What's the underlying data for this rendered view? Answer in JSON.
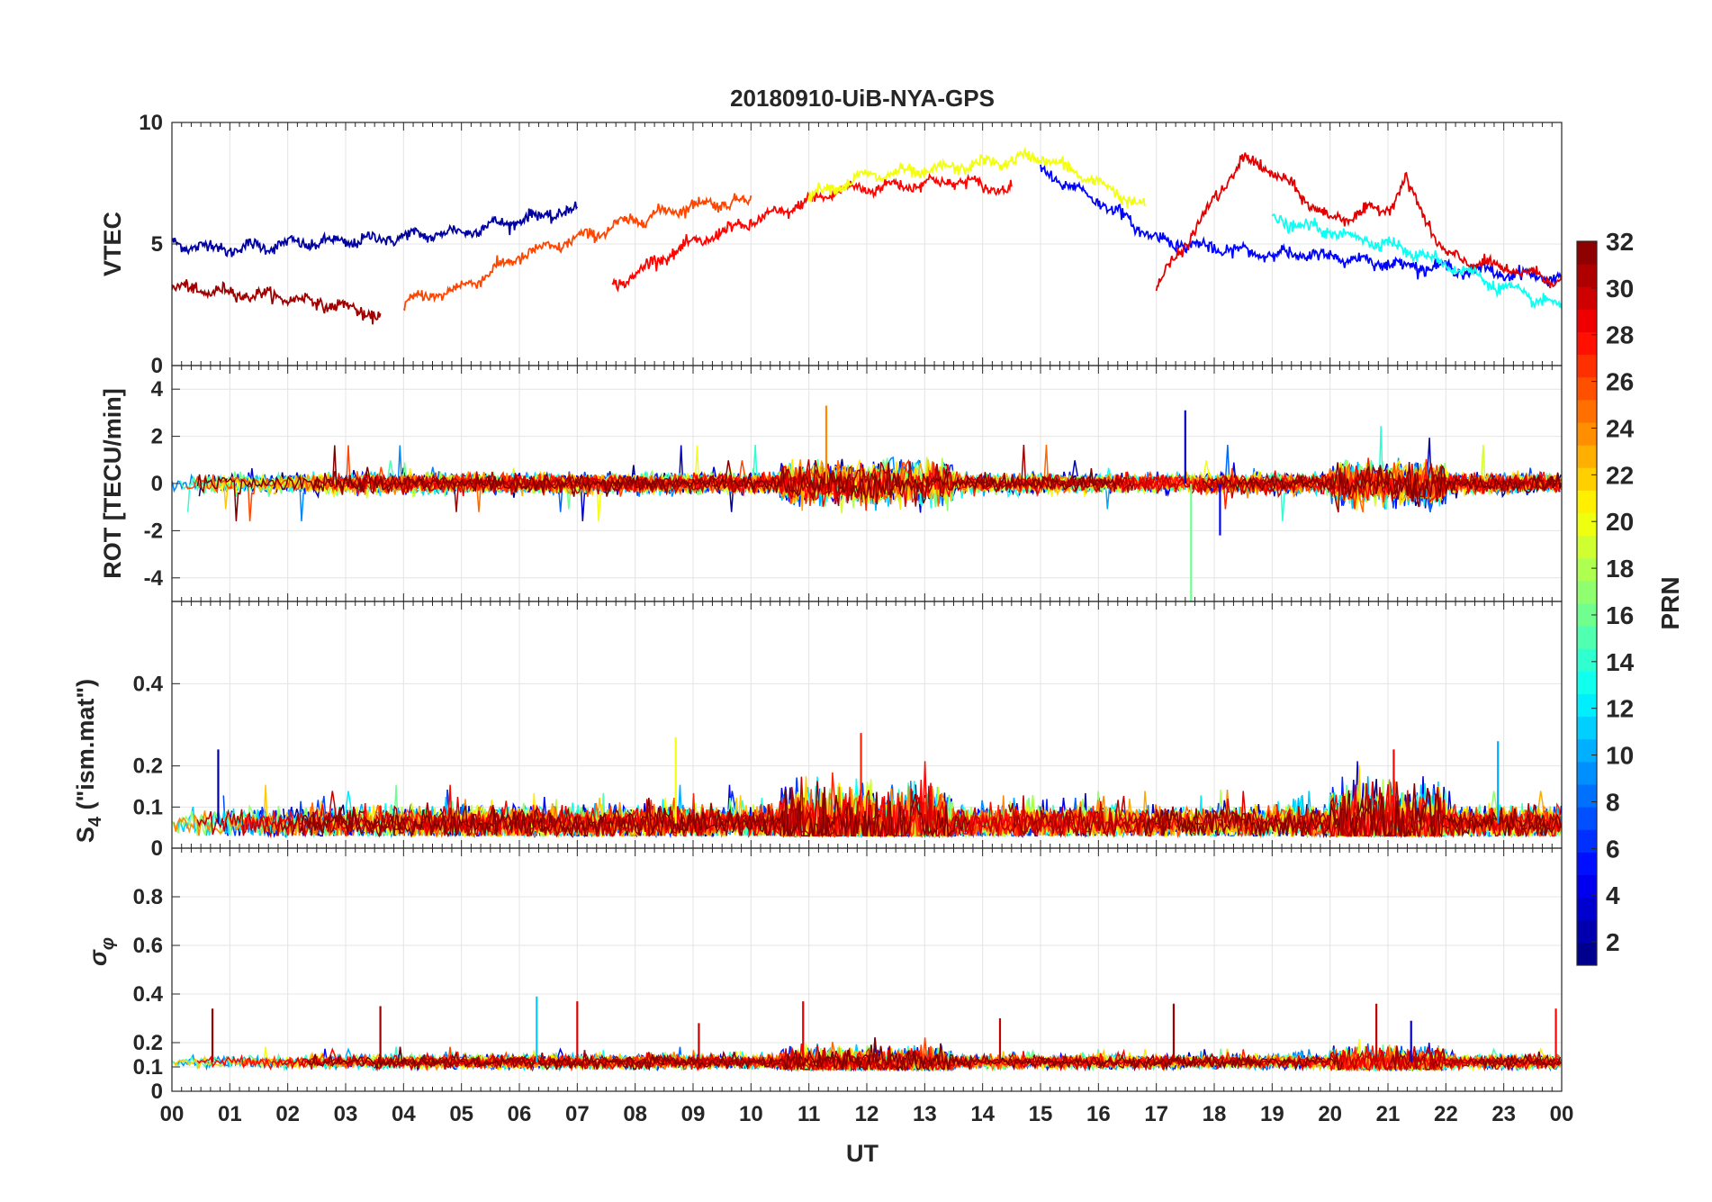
{
  "figure": {
    "title": "20180910-UiB-NYA-GPS",
    "xlabel": "UT",
    "x_ticks": [
      "00",
      "01",
      "02",
      "03",
      "04",
      "05",
      "06",
      "07",
      "08",
      "09",
      "10",
      "11",
      "12",
      "13",
      "14",
      "15",
      "16",
      "17",
      "18",
      "19",
      "20",
      "21",
      "22",
      "23",
      "00"
    ]
  },
  "colorbar": {
    "label": "PRN",
    "range": [
      1,
      32
    ],
    "ticks": [
      2,
      4,
      6,
      8,
      10,
      12,
      14,
      16,
      18,
      20,
      22,
      24,
      26,
      28,
      30,
      32
    ],
    "tick_labels": [
      "2",
      "4",
      "6",
      "8",
      "10",
      "12",
      "14",
      "16",
      "18",
      "20",
      "22",
      "24",
      "26",
      "28",
      "30",
      "32"
    ],
    "colormap": "jet",
    "levels": 32
  },
  "chart_data": [
    {
      "type": "line",
      "panel": "vtec",
      "ylabel": "VTEC",
      "ylim": [
        0,
        10
      ],
      "y_ticks": [
        0,
        5,
        10
      ],
      "y_tick_labels": [
        "0",
        "5",
        "10"
      ],
      "x_range_hours": [
        0,
        24
      ],
      "grid": true,
      "series_note_prn": [
        {
          "prn": 2,
          "x": [
            0.0,
            1.0,
            2.0,
            3.0,
            4.0,
            5.0,
            6.0,
            7.0
          ],
          "y": [
            5.0,
            4.8,
            5.0,
            5.1,
            5.3,
            5.5,
            6.0,
            6.4
          ]
        },
        {
          "prn": 31,
          "x": [
            0.0,
            1.0,
            2.0,
            3.0,
            3.6
          ],
          "y": [
            3.2,
            3.0,
            2.8,
            2.4,
            2.0
          ]
        },
        {
          "prn": 26,
          "x": [
            4.0,
            5.0,
            6.0,
            7.0,
            8.0,
            9.0,
            10.0
          ],
          "y": [
            2.6,
            3.2,
            4.5,
            5.2,
            6.0,
            6.6,
            6.8
          ]
        },
        {
          "prn": 28,
          "x": [
            7.6,
            8.5,
            9.5,
            10.5,
            11.5,
            12.5,
            13.5,
            14.5
          ],
          "y": [
            3.2,
            4.5,
            5.5,
            6.3,
            7.2,
            7.4,
            7.6,
            7.2
          ]
        },
        {
          "prn": 20,
          "x": [
            11.0,
            12.0,
            13.0,
            14.0,
            15.0,
            16.0,
            16.8
          ],
          "y": [
            7.0,
            7.8,
            8.0,
            8.3,
            8.6,
            7.5,
            6.5
          ]
        },
        {
          "prn": 5,
          "x": [
            15.0,
            16.0,
            17.0,
            18.0,
            19.0,
            20.0,
            21.0,
            22.0,
            23.0,
            24.0
          ],
          "y": [
            8.0,
            6.8,
            5.2,
            4.8,
            4.6,
            4.5,
            4.2,
            4.0,
            3.8,
            3.6
          ]
        },
        {
          "prn": 29,
          "x": [
            17.0,
            18.0,
            18.5,
            19.0,
            20.0,
            21.0,
            21.3,
            22.0,
            23.0,
            24.0
          ],
          "y": [
            3.2,
            6.8,
            8.5,
            8.0,
            6.0,
            6.5,
            7.6,
            4.5,
            4.0,
            3.5
          ]
        },
        {
          "prn": 13,
          "x": [
            19.0,
            20.0,
            21.0,
            22.0,
            23.0,
            24.0
          ],
          "y": [
            6.0,
            5.5,
            5.0,
            4.2,
            3.2,
            2.4
          ]
        }
      ]
    },
    {
      "type": "line",
      "panel": "rot",
      "ylabel": "ROT [TECU/min]",
      "ylim": [
        -5,
        5
      ],
      "y_ticks": [
        -4,
        -2,
        0,
        2,
        4
      ],
      "y_tick_labels": [
        "-4",
        "-2",
        "0",
        "2",
        "4"
      ],
      "x_range_hours": [
        0,
        24
      ],
      "grid": true,
      "annotations": [
        {
          "prn": 24,
          "x": 11.3,
          "y": 3.3
        },
        {
          "prn": 3,
          "x": 17.5,
          "y": 3.1
        },
        {
          "prn": 16,
          "x": 17.6,
          "y": -5.0
        },
        {
          "prn": 5,
          "x": 18.1,
          "y": -2.2
        }
      ]
    },
    {
      "type": "line",
      "panel": "s4",
      "ylabel": "S4 (\"ism.mat\")",
      "ylabel_main": "S",
      "ylabel_sub": "4",
      "ylabel_rest": " (\"ism.mat\")",
      "ylim": [
        0,
        0.6
      ],
      "y_ticks": [
        0,
        0.1,
        0.2,
        0.4
      ],
      "y_tick_labels": [
        "0",
        "0.1",
        "0.2",
        "0.4"
      ],
      "x_range_hours": [
        0,
        24
      ],
      "grid": true,
      "peaks": [
        {
          "prn": 2,
          "x": 0.8,
          "y": 0.24
        },
        {
          "prn": 20,
          "x": 8.7,
          "y": 0.27
        },
        {
          "prn": 27,
          "x": 11.9,
          "y": 0.28
        },
        {
          "prn": 28,
          "x": 21.1,
          "y": 0.24
        },
        {
          "prn": 10,
          "x": 22.9,
          "y": 0.26
        }
      ]
    },
    {
      "type": "line",
      "panel": "sigma_phi",
      "ylabel": "σφ",
      "ylabel_main": "σ",
      "ylabel_sub": "φ",
      "ylim": [
        0,
        1
      ],
      "y_ticks": [
        0,
        0.1,
        0.2,
        0.4,
        0.6,
        0.8
      ],
      "y_tick_labels": [
        "0",
        "0.1",
        "0.2",
        "0.4",
        "0.6",
        "0.8"
      ],
      "x_range_hours": [
        0,
        24
      ],
      "grid": true,
      "spikes": [
        {
          "prn": 31,
          "x": 0.7,
          "y": 0.34
        },
        {
          "prn": 31,
          "x": 3.6,
          "y": 0.35
        },
        {
          "prn": 11,
          "x": 6.3,
          "y": 0.39
        },
        {
          "prn": 29,
          "x": 7.0,
          "y": 0.37
        },
        {
          "prn": 30,
          "x": 9.1,
          "y": 0.28
        },
        {
          "prn": 29,
          "x": 10.9,
          "y": 0.37
        },
        {
          "prn": 30,
          "x": 14.3,
          "y": 0.3
        },
        {
          "prn": 31,
          "x": 17.3,
          "y": 0.36
        },
        {
          "prn": 30,
          "x": 20.8,
          "y": 0.36
        },
        {
          "prn": 4,
          "x": 21.4,
          "y": 0.29
        },
        {
          "prn": 28,
          "x": 23.9,
          "y": 0.34
        }
      ]
    }
  ]
}
